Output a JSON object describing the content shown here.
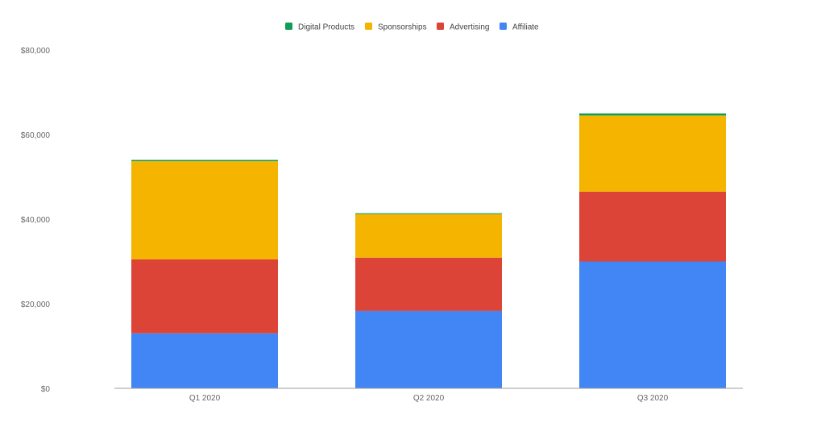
{
  "chart_data": {
    "type": "bar",
    "stacked": true,
    "categories": [
      "Q1 2020",
      "Q2 2020",
      "Q3 2020"
    ],
    "series": [
      {
        "name": "Affiliate",
        "color": "#4285F4",
        "values": [
          13000,
          18300,
          30000
        ]
      },
      {
        "name": "Advertising",
        "color": "#DB4437",
        "values": [
          17500,
          12600,
          16500
        ]
      },
      {
        "name": "Sponsorships",
        "color": "#F4B400",
        "values": [
          23200,
          10300,
          18000
        ]
      },
      {
        "name": "Digital Products",
        "color": "#0F9D58",
        "values": [
          300,
          200,
          500
        ]
      }
    ],
    "legend_order": [
      "Digital Products",
      "Sponsorships",
      "Advertising",
      "Affiliate"
    ],
    "legend_position": "top-center",
    "ylim": [
      0,
      80000
    ],
    "yticks": [
      0,
      20000,
      40000,
      60000,
      80000
    ],
    "ytick_labels": [
      "$0",
      "$20,000",
      "$40,000",
      "$60,000",
      "$80,000"
    ],
    "grid": false,
    "title": "",
    "xlabel": "",
    "ylabel": ""
  },
  "colors": {
    "axis_text": "#666666",
    "legend_text": "#444444",
    "baseline": "#9e9e9e"
  }
}
